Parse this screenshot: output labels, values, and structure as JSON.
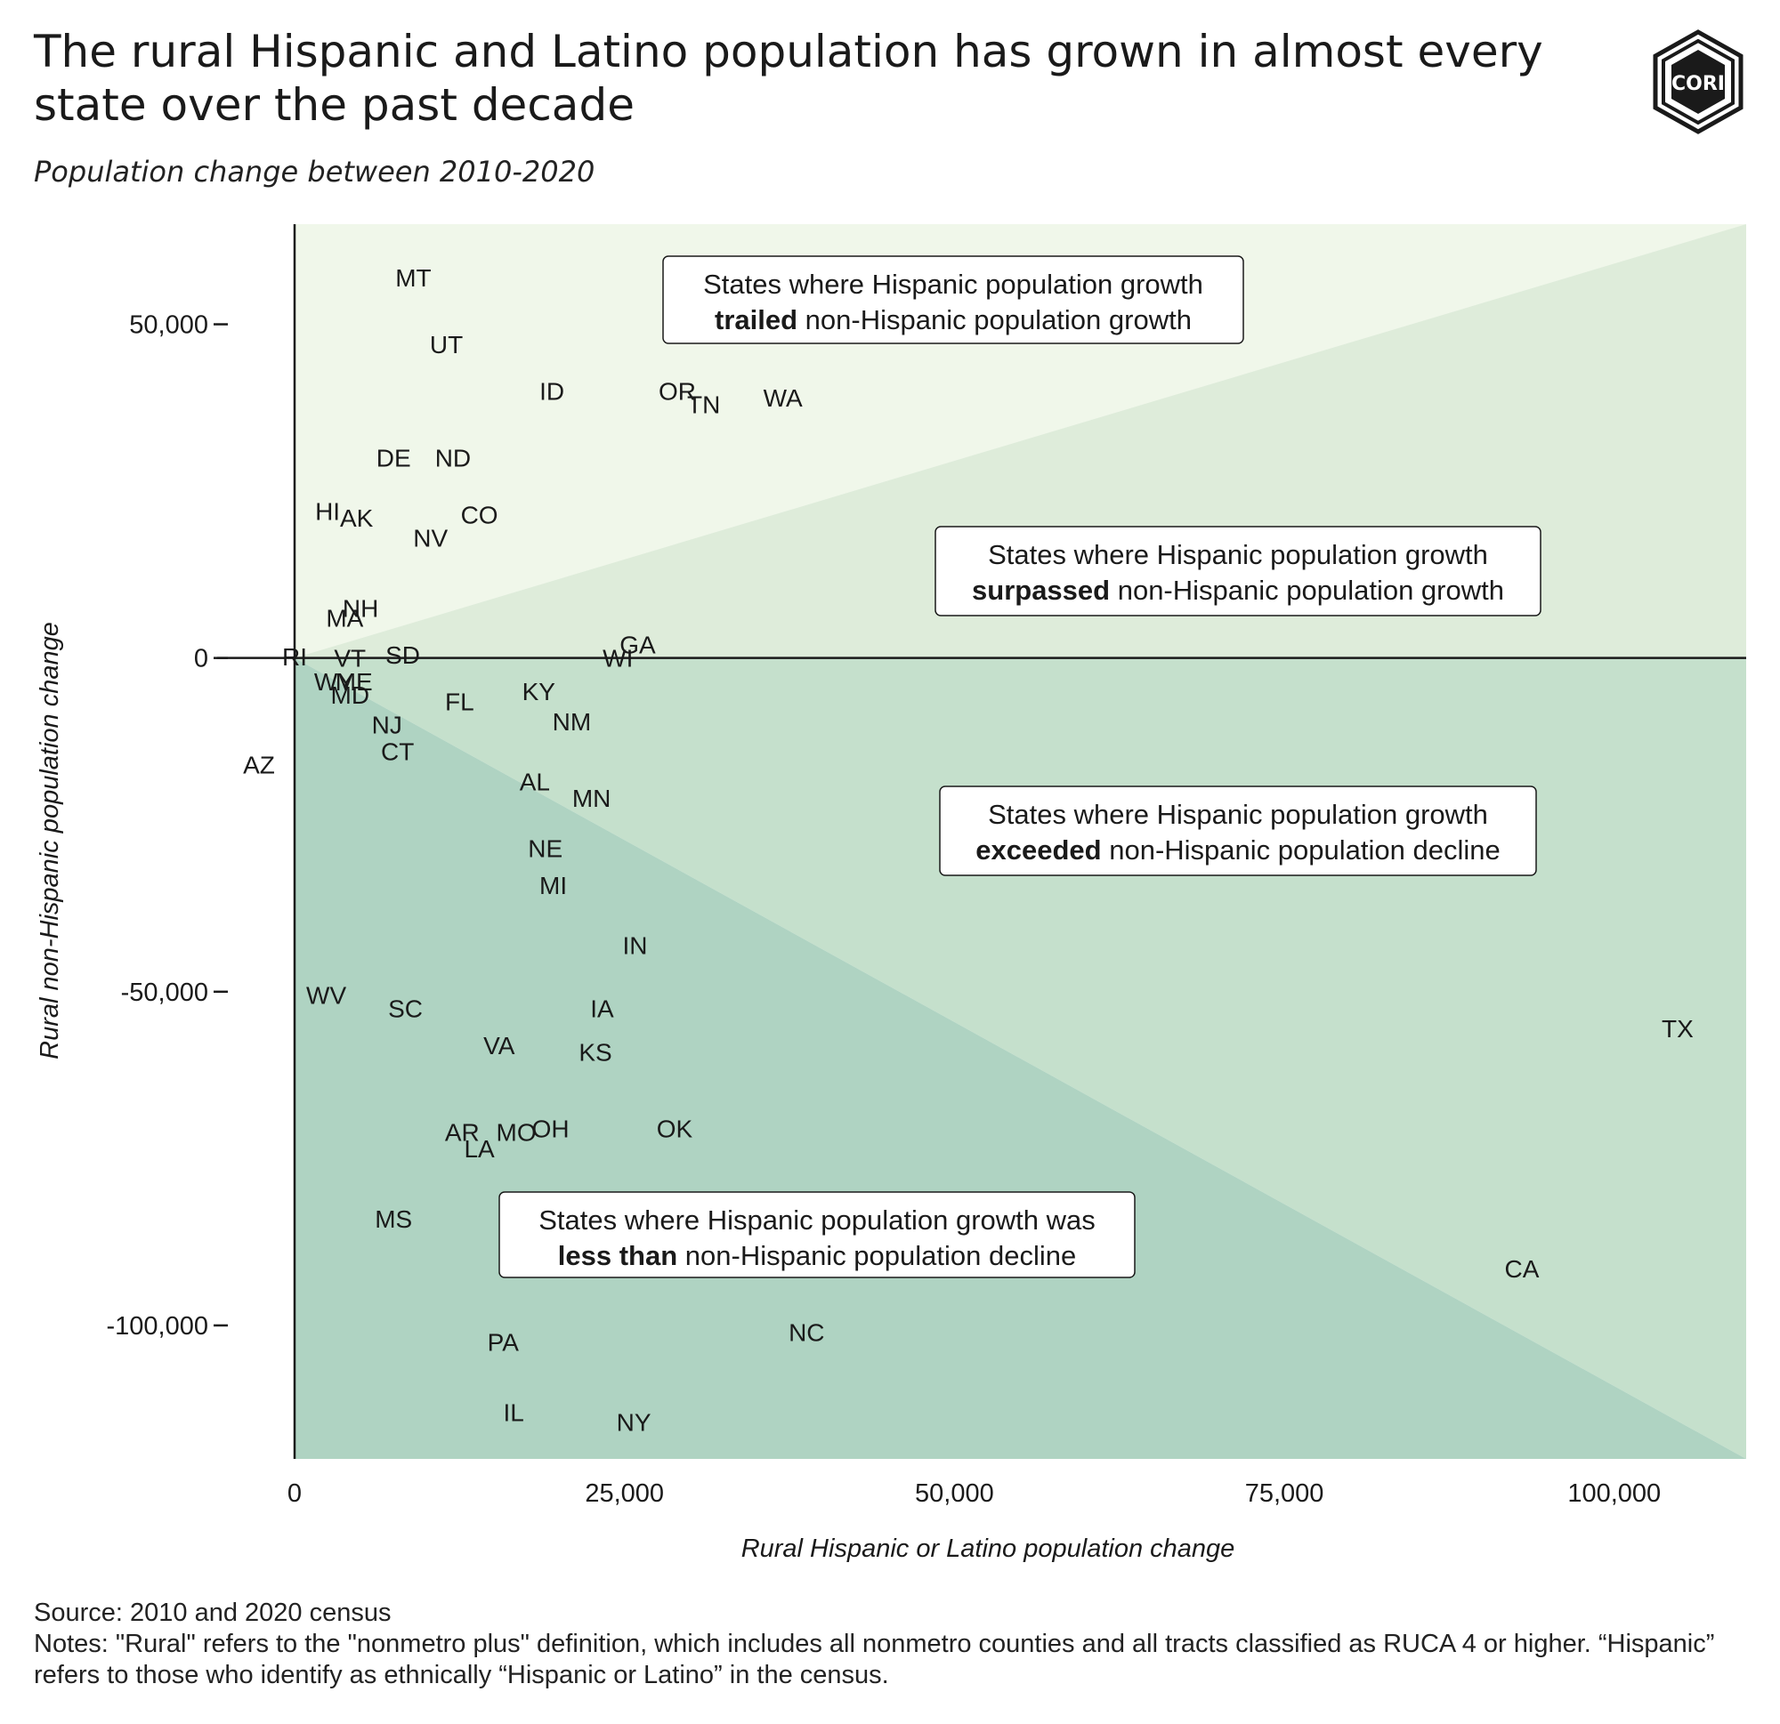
{
  "header": {
    "title": "The rural Hispanic and Latino population has grown in almost every state over the past decade",
    "subtitle": "Population change between 2010-2020",
    "logo_text": "CORI"
  },
  "footer": {
    "source": "Source: 2010 and 2020 census",
    "notes": "Notes: \"Rural\" refers to the \"nonmetro plus\" definition, which includes all nonmetro counties and all tracts classified as RUCA 4 or higher. “Hispanic” refers to those who identify as ethnically “Hispanic or Latino” in the census."
  },
  "chart_data": {
    "type": "scatter",
    "xlabel": "Rural Hispanic or Latino population change",
    "ylabel": "Rural non-Hispanic population change",
    "xlim": [
      0,
      110000
    ],
    "ylim": [
      -120000,
      65000
    ],
    "x_ticks": [
      0,
      25000,
      50000,
      75000,
      100000
    ],
    "x_tick_labels": [
      "0",
      "25,000",
      "50,000",
      "75,000",
      "100,000"
    ],
    "y_ticks": [
      50000,
      0,
      -50000,
      -100000
    ],
    "y_tick_labels": [
      "50,000",
      "0",
      "-50,000",
      "-100,000"
    ],
    "grid": false,
    "colors": {
      "region_trailed": "#f0f7ea",
      "region_surpassed": "#deecda",
      "region_exceeded": "#c5e0cc",
      "region_less_than": "#afd3c2"
    },
    "regions": [
      {
        "pre": "States where Hispanic population growth",
        "bold": "trailed",
        "post": "non-Hispanic population growth"
      },
      {
        "pre": "States where Hispanic population growth",
        "bold": "surpassed",
        "post": "non-Hispanic population growth"
      },
      {
        "pre": "States where Hispanic population growth",
        "bold": "exceeded",
        "post": "non-Hispanic population decline"
      },
      {
        "pre": "States where Hispanic population growth was",
        "bold": "less than",
        "post": "non-Hispanic population decline"
      }
    ],
    "points": [
      {
        "label": "MT",
        "x": 9000,
        "y": 57000
      },
      {
        "label": "UT",
        "x": 11500,
        "y": 47000
      },
      {
        "label": "ID",
        "x": 19500,
        "y": 40000
      },
      {
        "label": "OR",
        "x": 29000,
        "y": 40000
      },
      {
        "label": "TN",
        "x": 31000,
        "y": 38000
      },
      {
        "label": "WA",
        "x": 37000,
        "y": 39000
      },
      {
        "label": "DE",
        "x": 7500,
        "y": 30000
      },
      {
        "label": "ND",
        "x": 12000,
        "y": 30000
      },
      {
        "label": "HI",
        "x": 2500,
        "y": 22000
      },
      {
        "label": "AK",
        "x": 4700,
        "y": 21000
      },
      {
        "label": "CO",
        "x": 14000,
        "y": 21500
      },
      {
        "label": "NV",
        "x": 10300,
        "y": 18000
      },
      {
        "label": "NH",
        "x": 5000,
        "y": 7500
      },
      {
        "label": "MA",
        "x": 3800,
        "y": 6000
      },
      {
        "label": "RI",
        "x": 0,
        "y": 200
      },
      {
        "label": "VT",
        "x": 4200,
        "y": 0
      },
      {
        "label": "SD",
        "x": 8200,
        "y": 500
      },
      {
        "label": "GA",
        "x": 26000,
        "y": 2000
      },
      {
        "label": "WI",
        "x": 24500,
        "y": 0
      },
      {
        "label": "WY",
        "x": 3000,
        "y": -3500
      },
      {
        "label": "ME",
        "x": 4500,
        "y": -3500
      },
      {
        "label": "MD",
        "x": 4200,
        "y": -5500
      },
      {
        "label": "FL",
        "x": 12500,
        "y": -6500
      },
      {
        "label": "KY",
        "x": 18500,
        "y": -5000
      },
      {
        "label": "NM",
        "x": 21000,
        "y": -9500
      },
      {
        "label": "NJ",
        "x": 7000,
        "y": -10000
      },
      {
        "label": "CT",
        "x": 7800,
        "y": -14000
      },
      {
        "label": "AZ",
        "x": -2700,
        "y": -16000
      },
      {
        "label": "AL",
        "x": 18200,
        "y": -18500
      },
      {
        "label": "MN",
        "x": 22500,
        "y": -21000
      },
      {
        "label": "NE",
        "x": 19000,
        "y": -28500
      },
      {
        "label": "MI",
        "x": 19600,
        "y": -34000
      },
      {
        "label": "IN",
        "x": 25800,
        "y": -43000
      },
      {
        "label": "WV",
        "x": 2400,
        "y": -50500
      },
      {
        "label": "SC",
        "x": 8400,
        "y": -52500
      },
      {
        "label": "IA",
        "x": 23300,
        "y": -52500
      },
      {
        "label": "TX",
        "x": 104800,
        "y": -55500
      },
      {
        "label": "VA",
        "x": 15500,
        "y": -58000
      },
      {
        "label": "KS",
        "x": 22800,
        "y": -59000
      },
      {
        "label": "AR",
        "x": 12700,
        "y": -71000
      },
      {
        "label": "MO",
        "x": 16800,
        "y": -71000
      },
      {
        "label": "OH",
        "x": 19400,
        "y": -70500
      },
      {
        "label": "OK",
        "x": 28800,
        "y": -70500
      },
      {
        "label": "LA",
        "x": 14000,
        "y": -73500
      },
      {
        "label": "MS",
        "x": 7500,
        "y": -84000
      },
      {
        "label": "CA",
        "x": 93000,
        "y": -91500
      },
      {
        "label": "NC",
        "x": 38800,
        "y": -101000
      },
      {
        "label": "PA",
        "x": 15800,
        "y": -102500
      },
      {
        "label": "IL",
        "x": 16600,
        "y": -113000
      },
      {
        "label": "NY",
        "x": 25700,
        "y": -114500
      }
    ]
  }
}
